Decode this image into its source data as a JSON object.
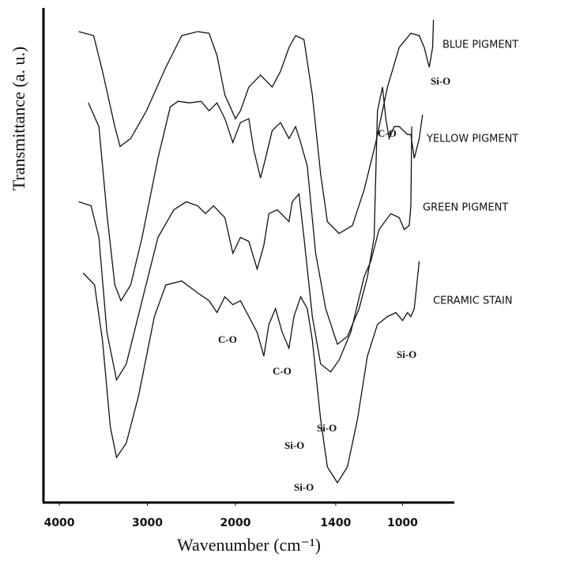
{
  "chart_data": {
    "type": "line",
    "xlabel": "Wavenumber (cm⁻¹)",
    "ylabel": "Transmittance (a. u.)",
    "xlim": [
      4180,
      690
    ],
    "xticks": [
      4000,
      3000,
      2000,
      1400,
      1000
    ],
    "xscale": "piecewise",
    "xbreak": 2000,
    "ylim": [
      0,
      625
    ],
    "grid": false,
    "series": [
      {
        "name": "BLUE PIGMENT",
        "color": "#111111",
        "x": [
          3780,
          3610,
          3510,
          3370,
          3310,
          3190,
          3010,
          2790,
          2610,
          2430,
          2300,
          2210,
          2120,
          2000,
          1970,
          1920,
          1850,
          1780,
          1730,
          1680,
          1640,
          1590,
          1540,
          1490,
          1450,
          1380,
          1300,
          1230,
          1160,
          1090,
          1020,
          950,
          900,
          870,
          840,
          820,
          815
        ],
        "values": [
          595,
          590,
          545,
          475,
          450,
          460,
          495,
          550,
          590,
          595,
          593,
          565,
          515,
          485,
          495,
          525,
          540,
          525,
          545,
          575,
          590,
          585,
          515,
          415,
          355,
          340,
          350,
          395,
          455,
          525,
          575,
          593,
          590,
          575,
          550,
          575,
          610
        ]
      },
      {
        "name": "YELLOW PIGMENT",
        "color": "#111111",
        "x": [
          3670,
          3550,
          3460,
          3370,
          3300,
          3190,
          3060,
          2880,
          2740,
          2650,
          2520,
          2390,
          2300,
          2210,
          2120,
          2030,
          1970,
          1920,
          1890,
          1850,
          1820,
          1780,
          1730,
          1680,
          1640,
          1610,
          1570,
          1520,
          1460,
          1390,
          1330,
          1260,
          1210,
          1170,
          1150,
          1120,
          1100,
          1080,
          1050,
          1020,
          970,
          950,
          930,
          900,
          880
        ],
        "values": [
          505,
          475,
          365,
          275,
          255,
          275,
          335,
          435,
          500,
          507,
          505,
          507,
          495,
          505,
          485,
          455,
          480,
          485,
          445,
          410,
          435,
          470,
          480,
          460,
          475,
          455,
          425,
          315,
          245,
          200,
          210,
          245,
          285,
          335,
          495,
          525,
          485,
          460,
          475,
          475,
          465,
          465,
          435,
          460,
          490
        ]
      },
      {
        "name": "GREEN PIGMENT",
        "color": "#111111",
        "x": [
          3780,
          3640,
          3550,
          3460,
          3350,
          3240,
          3060,
          2880,
          2700,
          2560,
          2430,
          2340,
          2250,
          2120,
          2030,
          1970,
          1920,
          1870,
          1830,
          1800,
          1750,
          1680,
          1660,
          1620,
          1590,
          1540,
          1490,
          1430,
          1380,
          1310,
          1230,
          1190,
          1140,
          1070,
          1020,
          990,
          960,
          950,
          945
        ],
        "values": [
          380,
          375,
          335,
          215,
          155,
          175,
          255,
          335,
          370,
          380,
          375,
          365,
          375,
          360,
          315,
          335,
          330,
          295,
          325,
          365,
          370,
          355,
          380,
          390,
          335,
          235,
          175,
          165,
          180,
          215,
          285,
          305,
          345,
          365,
          360,
          345,
          350,
          375,
          475
        ]
      },
      {
        "name": "CERAMIC STAIN",
        "color": "#111111",
        "x": [
          3730,
          3600,
          3510,
          3420,
          3350,
          3240,
          3100,
          2920,
          2790,
          2610,
          2430,
          2300,
          2210,
          2120,
          2030,
          1970,
          1920,
          1870,
          1830,
          1800,
          1760,
          1720,
          1680,
          1650,
          1610,
          1570,
          1540,
          1490,
          1450,
          1390,
          1330,
          1270,
          1210,
          1150,
          1090,
          1040,
          1000,
          970,
          950,
          930,
          900
        ],
        "values": [
          290,
          275,
          205,
          95,
          57,
          75,
          135,
          235,
          275,
          280,
          265,
          255,
          240,
          260,
          250,
          255,
          235,
          215,
          185,
          225,
          245,
          215,
          195,
          235,
          260,
          245,
          205,
          105,
          45,
          25,
          45,
          105,
          185,
          225,
          235,
          240,
          230,
          240,
          235,
          245,
          305
        ]
      }
    ],
    "annotations": [
      "Si-O",
      "C-O",
      "Si-O",
      "C-O",
      "C-O",
      "Si-O",
      "Si-O",
      "Si-O"
    ]
  }
}
